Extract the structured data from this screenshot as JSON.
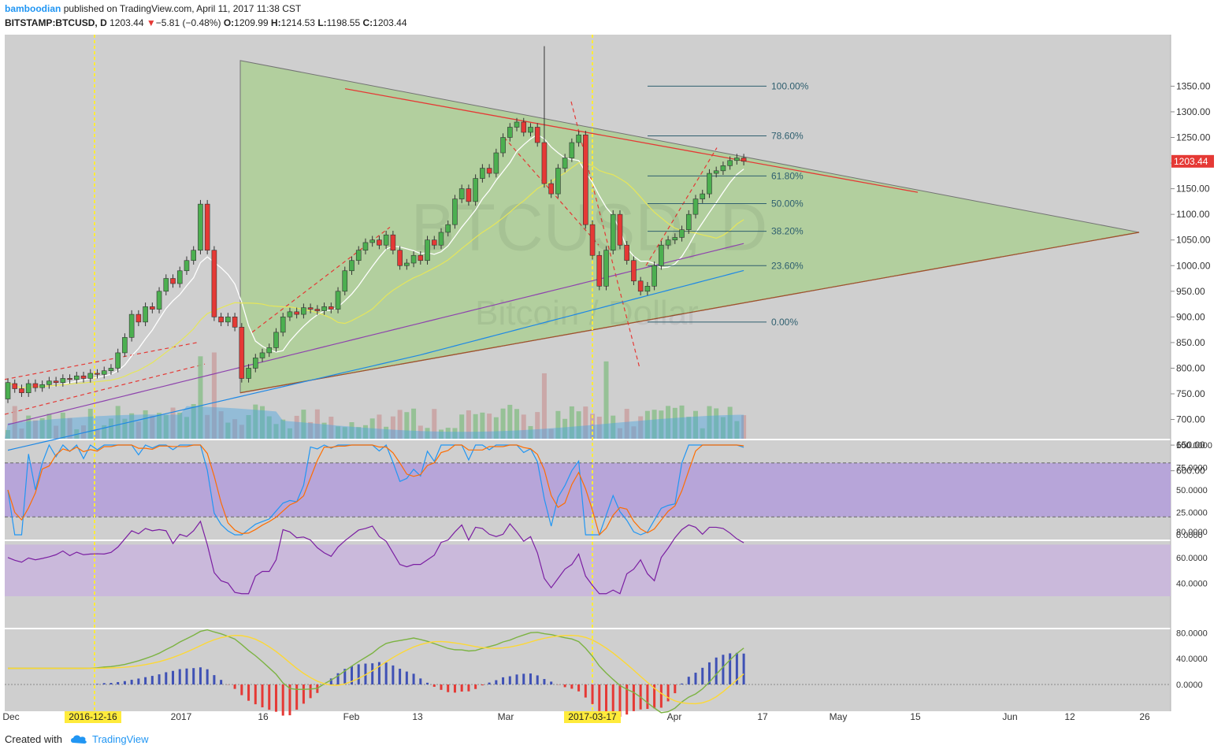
{
  "header": {
    "author": "bamboodian",
    "published_text": "published on TradingView.com, April 11, 2017 11:38 CST",
    "symbol": "BITSTAMP:BTCUSD, D",
    "last": "1203.44",
    "change_arrow": "▼",
    "change": "−5.81 (−0.48%)",
    "o_label": "O:",
    "o_value": "1209.99",
    "h_label": "H:",
    "h_value": "1214.53",
    "l_label": "L:",
    "l_value": "1198.55",
    "c_label": "C:",
    "c_value": "1203.44"
  },
  "watermark": {
    "big": "BTCUSD, D",
    "small": "Bitcoin / Dollar"
  },
  "price_badge": "1203.44",
  "fib_labels": [
    "100.00%",
    "78.60%",
    "61.80%",
    "50.00%",
    "38.20%",
    "23.60%",
    "0.00%"
  ],
  "x_axis": {
    "ticks": [
      "Dec",
      "2017",
      "16",
      "Feb",
      "13",
      "Mar",
      "Apr",
      "17",
      "May",
      "15",
      "Jun",
      "12",
      "26"
    ],
    "highlight_dates": [
      "2016-12-16",
      "2017-03-17"
    ]
  },
  "footer": {
    "created": "Created with",
    "brand": "TradingView"
  },
  "colors": {
    "up": "#4caf50",
    "down": "#e53935",
    "pane_bg": "#cfcfcf",
    "triangle": "#a9d08e",
    "band": "#b39ddb",
    "fib": "#2f5f6f",
    "accent": "#e53935"
  },
  "chart_data": {
    "type": "candlestick",
    "symbol": "BITSTAMP:BTCUSD",
    "interval": "D",
    "price_axis": {
      "ylim": [
        600,
        1400
      ],
      "ticks": [
        "1350.00",
        "1300.00",
        "1250.00",
        "1200.00",
        "1150.00",
        "1100.00",
        "1050.00",
        "1000.00",
        "950.00",
        "900.00",
        "850.00",
        "800.00",
        "750.00",
        "700.00",
        "650.00",
        "600.00"
      ]
    },
    "fib_levels": [
      {
        "label": "100.00%",
        "price": 1350
      },
      {
        "label": "78.60%",
        "price": 1253
      },
      {
        "label": "61.80%",
        "price": 1175
      },
      {
        "label": "50.00%",
        "price": 1121
      },
      {
        "label": "38.20%",
        "price": 1067
      },
      {
        "label": "23.60%",
        "price": 1000
      },
      {
        "label": "0.00%",
        "price": 890
      }
    ],
    "triangle": {
      "vertices": [
        {
          "date": "2017-01-05",
          "price": 1400
        },
        {
          "date": "2017-01-05",
          "price": 752
        },
        {
          "date": "2017-05-26",
          "price": 1065
        }
      ]
    },
    "last_price": 1203.44,
    "candles": [
      [
        740,
        772
      ],
      [
        770,
        760
      ],
      [
        760,
        752
      ],
      [
        752,
        770
      ],
      [
        770,
        762
      ],
      [
        762,
        768
      ],
      [
        768,
        775
      ],
      [
        775,
        772
      ],
      [
        772,
        780
      ],
      [
        780,
        778
      ],
      [
        778,
        785
      ],
      [
        785,
        780
      ],
      [
        780,
        790
      ],
      [
        790,
        788
      ],
      [
        788,
        795
      ],
      [
        795,
        800
      ],
      [
        800,
        830
      ],
      [
        830,
        860
      ],
      [
        860,
        905
      ],
      [
        905,
        890
      ],
      [
        890,
        920
      ],
      [
        920,
        915
      ],
      [
        915,
        950
      ],
      [
        950,
        975
      ],
      [
        975,
        965
      ],
      [
        965,
        990
      ],
      [
        990,
        1010
      ],
      [
        1010,
        1030
      ],
      [
        1030,
        1120
      ],
      [
        1120,
        1030
      ],
      [
        1030,
        900
      ],
      [
        900,
        890
      ],
      [
        890,
        900
      ],
      [
        900,
        880
      ],
      [
        880,
        780
      ],
      [
        780,
        800
      ],
      [
        800,
        820
      ],
      [
        820,
        830
      ],
      [
        830,
        840
      ],
      [
        840,
        870
      ],
      [
        870,
        900
      ],
      [
        900,
        910
      ],
      [
        910,
        905
      ],
      [
        905,
        918
      ],
      [
        918,
        915
      ],
      [
        915,
        912
      ],
      [
        912,
        920
      ],
      [
        920,
        915
      ],
      [
        915,
        950
      ],
      [
        950,
        990
      ],
      [
        990,
        1010
      ],
      [
        1010,
        1030
      ],
      [
        1030,
        1045
      ],
      [
        1045,
        1050
      ],
      [
        1050,
        1040
      ],
      [
        1040,
        1060
      ],
      [
        1060,
        1030
      ],
      [
        1030,
        1000
      ],
      [
        1000,
        1005
      ],
      [
        1005,
        1020
      ],
      [
        1020,
        1010
      ],
      [
        1010,
        1050
      ],
      [
        1050,
        1040
      ],
      [
        1040,
        1065
      ],
      [
        1065,
        1080
      ],
      [
        1080,
        1130
      ],
      [
        1130,
        1150
      ],
      [
        1150,
        1125
      ],
      [
        1125,
        1170
      ],
      [
        1170,
        1190
      ],
      [
        1190,
        1180
      ],
      [
        1180,
        1220
      ],
      [
        1220,
        1250
      ],
      [
        1250,
        1270
      ],
      [
        1270,
        1280
      ],
      [
        1280,
        1260
      ],
      [
        1260,
        1270
      ],
      [
        1270,
        1240
      ],
      [
        1240,
        1160
      ],
      [
        1160,
        1140
      ],
      [
        1140,
        1190
      ],
      [
        1190,
        1210
      ],
      [
        1210,
        1240
      ],
      [
        1240,
        1255
      ],
      [
        1255,
        1080
      ],
      [
        1080,
        1020
      ],
      [
        1020,
        960
      ],
      [
        960,
        1030
      ],
      [
        1030,
        1100
      ],
      [
        1100,
        1040
      ],
      [
        1040,
        1010
      ],
      [
        1010,
        970
      ],
      [
        970,
        950
      ],
      [
        950,
        960
      ],
      [
        960,
        1000
      ],
      [
        1000,
        1040
      ],
      [
        1040,
        1050
      ],
      [
        1050,
        1055
      ],
      [
        1055,
        1070
      ],
      [
        1070,
        1100
      ],
      [
        1100,
        1130
      ],
      [
        1130,
        1140
      ],
      [
        1140,
        1180
      ],
      [
        1180,
        1185
      ],
      [
        1185,
        1195
      ],
      [
        1195,
        1205
      ],
      [
        1205,
        1210
      ],
      [
        1210,
        1203.44
      ]
    ],
    "volume_ylim": [
      0,
      100
    ],
    "stoch_rsi": {
      "ylim": [
        0,
        100
      ],
      "ticks": [
        "100.0000",
        "75.0000",
        "50.0000",
        "25.0000",
        "0.0000"
      ],
      "band": [
        20,
        80
      ]
    },
    "rsi": {
      "ylim": [
        30,
        90
      ],
      "ticks": [
        "80.0000",
        "60.0000",
        "40.0000"
      ],
      "band": [
        30,
        70
      ]
    },
    "macd": {
      "ylim": [
        -15,
        85
      ],
      "ticks": [
        "80.0000",
        "40.0000",
        "0.0000"
      ]
    }
  }
}
